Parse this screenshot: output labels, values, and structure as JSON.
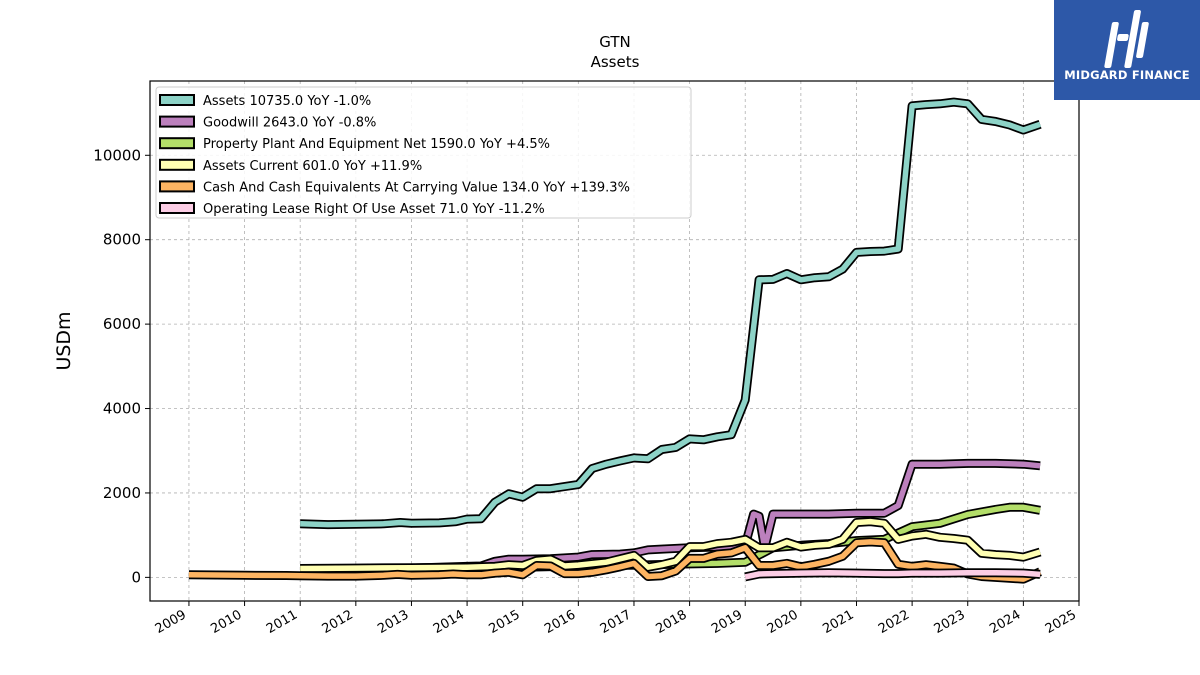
{
  "chart_data": {
    "type": "line",
    "title": "GTN",
    "subtitle": "Assets",
    "xlabel": "",
    "ylabel": "USDm",
    "xlim": [
      2008.3,
      2025.0
    ],
    "ylim": [
      -560,
      11760
    ],
    "xticks": [
      "2009",
      "2010",
      "2011",
      "2012",
      "2013",
      "2014",
      "2015",
      "2016",
      "2017",
      "2018",
      "2019",
      "2020",
      "2021",
      "2022",
      "2023",
      "2024",
      "2025"
    ],
    "yticks": [
      "0",
      "2000",
      "4000",
      "6000",
      "8000",
      "10000"
    ],
    "grid": true,
    "legend_position": "top-left",
    "series": [
      {
        "name": "Assets  10735.0 YoY -1.0%",
        "color": "#8dd3c7",
        "points": [
          [
            2011.0,
            1270
          ],
          [
            2011.5,
            1250
          ],
          [
            2012.0,
            1260
          ],
          [
            2012.5,
            1270
          ],
          [
            2012.8,
            1300
          ],
          [
            2013.0,
            1280
          ],
          [
            2013.5,
            1290
          ],
          [
            2013.8,
            1320
          ],
          [
            2014.0,
            1380
          ],
          [
            2014.25,
            1390
          ],
          [
            2014.5,
            1780
          ],
          [
            2014.75,
            1980
          ],
          [
            2015.0,
            1900
          ],
          [
            2015.25,
            2100
          ],
          [
            2015.5,
            2100
          ],
          [
            2015.75,
            2150
          ],
          [
            2016.0,
            2200
          ],
          [
            2016.25,
            2580
          ],
          [
            2016.5,
            2680
          ],
          [
            2016.75,
            2760
          ],
          [
            2017.0,
            2830
          ],
          [
            2017.25,
            2810
          ],
          [
            2017.5,
            3030
          ],
          [
            2017.75,
            3080
          ],
          [
            2018.0,
            3280
          ],
          [
            2018.25,
            3260
          ],
          [
            2018.5,
            3330
          ],
          [
            2018.75,
            3380
          ],
          [
            2019.0,
            4200
          ],
          [
            2019.25,
            7050
          ],
          [
            2019.5,
            7060
          ],
          [
            2019.75,
            7200
          ],
          [
            2020.0,
            7050
          ],
          [
            2020.25,
            7100
          ],
          [
            2020.5,
            7120
          ],
          [
            2020.75,
            7300
          ],
          [
            2021.0,
            7700
          ],
          [
            2021.25,
            7720
          ],
          [
            2021.5,
            7730
          ],
          [
            2021.75,
            7780
          ],
          [
            2022.0,
            11170
          ],
          [
            2022.25,
            11200
          ],
          [
            2022.5,
            11220
          ],
          [
            2022.75,
            11260
          ],
          [
            2023.0,
            11220
          ],
          [
            2023.25,
            10850
          ],
          [
            2023.5,
            10800
          ],
          [
            2023.75,
            10720
          ],
          [
            2024.0,
            10600
          ],
          [
            2024.3,
            10735
          ]
        ]
      },
      {
        "name": "Goodwill  2643.0 YoY -0.8%",
        "color": "#bc80bd",
        "points": [
          [
            2011.0,
            200
          ],
          [
            2012.0,
            210
          ],
          [
            2013.0,
            220
          ],
          [
            2014.0,
            260
          ],
          [
            2014.25,
            270
          ],
          [
            2014.5,
            380
          ],
          [
            2014.75,
            430
          ],
          [
            2015.0,
            430
          ],
          [
            2015.5,
            440
          ],
          [
            2016.0,
            480
          ],
          [
            2016.25,
            540
          ],
          [
            2016.75,
            550
          ],
          [
            2017.0,
            580
          ],
          [
            2017.25,
            650
          ],
          [
            2017.5,
            670
          ],
          [
            2018.0,
            700
          ],
          [
            2018.5,
            720
          ],
          [
            2019.0,
            760
          ],
          [
            2019.15,
            1500
          ],
          [
            2019.25,
            1450
          ],
          [
            2019.35,
            700
          ],
          [
            2019.5,
            1500
          ],
          [
            2020.0,
            1500
          ],
          [
            2020.5,
            1500
          ],
          [
            2021.0,
            1520
          ],
          [
            2021.5,
            1520
          ],
          [
            2021.75,
            1700
          ],
          [
            2022.0,
            2680
          ],
          [
            2022.5,
            2680
          ],
          [
            2023.0,
            2700
          ],
          [
            2023.5,
            2700
          ],
          [
            2024.0,
            2680
          ],
          [
            2024.3,
            2643
          ]
        ]
      },
      {
        "name": "Property Plant And Equipment Net  1590.0 YoY +4.5%",
        "color": "#b3de69",
        "points": [
          [
            2011.0,
            160
          ],
          [
            2012.0,
            170
          ],
          [
            2013.0,
            190
          ],
          [
            2014.0,
            210
          ],
          [
            2015.0,
            240
          ],
          [
            2016.0,
            270
          ],
          [
            2017.0,
            290
          ],
          [
            2018.0,
            320
          ],
          [
            2018.5,
            330
          ],
          [
            2019.0,
            360
          ],
          [
            2019.5,
            700
          ],
          [
            2020.0,
            760
          ],
          [
            2020.5,
            800
          ],
          [
            2021.0,
            870
          ],
          [
            2021.5,
            900
          ],
          [
            2022.0,
            1200
          ],
          [
            2022.5,
            1280
          ],
          [
            2023.0,
            1490
          ],
          [
            2023.5,
            1610
          ],
          [
            2023.75,
            1660
          ],
          [
            2024.0,
            1660
          ],
          [
            2024.3,
            1590
          ]
        ]
      },
      {
        "name": "Assets Current  601.0 YoY +11.9%",
        "color": "#ffffb3",
        "points": [
          [
            2011.0,
            210
          ],
          [
            2012.0,
            220
          ],
          [
            2013.0,
            230
          ],
          [
            2014.0,
            240
          ],
          [
            2014.5,
            260
          ],
          [
            2014.75,
            300
          ],
          [
            2015.0,
            280
          ],
          [
            2015.25,
            400
          ],
          [
            2015.5,
            430
          ],
          [
            2015.75,
            270
          ],
          [
            2016.0,
            290
          ],
          [
            2016.5,
            360
          ],
          [
            2017.0,
            520
          ],
          [
            2017.25,
            240
          ],
          [
            2017.5,
            300
          ],
          [
            2017.75,
            380
          ],
          [
            2018.0,
            730
          ],
          [
            2018.25,
            730
          ],
          [
            2018.5,
            800
          ],
          [
            2018.75,
            830
          ],
          [
            2019.0,
            900
          ],
          [
            2019.25,
            700
          ],
          [
            2019.5,
            700
          ],
          [
            2019.75,
            830
          ],
          [
            2020.0,
            720
          ],
          [
            2020.25,
            760
          ],
          [
            2020.5,
            780
          ],
          [
            2020.75,
            900
          ],
          [
            2021.0,
            1300
          ],
          [
            2021.25,
            1320
          ],
          [
            2021.5,
            1280
          ],
          [
            2021.75,
            900
          ],
          [
            2022.0,
            980
          ],
          [
            2022.25,
            1020
          ],
          [
            2022.5,
            950
          ],
          [
            2022.75,
            920
          ],
          [
            2023.0,
            880
          ],
          [
            2023.25,
            570
          ],
          [
            2023.5,
            540
          ],
          [
            2023.75,
            520
          ],
          [
            2024.0,
            480
          ],
          [
            2024.3,
            601
          ]
        ]
      },
      {
        "name": "Cash And Cash Equivalents At Carrying Value  134.0 YoY +139.3%",
        "color": "#fdb462",
        "points": [
          [
            2009.0,
            60
          ],
          [
            2010.0,
            50
          ],
          [
            2010.75,
            45
          ],
          [
            2011.0,
            40
          ],
          [
            2011.5,
            30
          ],
          [
            2012.0,
            30
          ],
          [
            2012.5,
            50
          ],
          [
            2012.75,
            70
          ],
          [
            2013.0,
            50
          ],
          [
            2013.5,
            60
          ],
          [
            2013.75,
            80
          ],
          [
            2014.0,
            60
          ],
          [
            2014.25,
            60
          ],
          [
            2014.5,
            100
          ],
          [
            2014.75,
            120
          ],
          [
            2015.0,
            60
          ],
          [
            2015.25,
            280
          ],
          [
            2015.5,
            270
          ],
          [
            2015.75,
            90
          ],
          [
            2016.0,
            90
          ],
          [
            2016.25,
            120
          ],
          [
            2016.5,
            180
          ],
          [
            2016.75,
            250
          ],
          [
            2017.0,
            330
          ],
          [
            2017.25,
            20
          ],
          [
            2017.5,
            40
          ],
          [
            2017.75,
            150
          ],
          [
            2018.0,
            450
          ],
          [
            2018.25,
            450
          ],
          [
            2018.5,
            550
          ],
          [
            2018.75,
            580
          ],
          [
            2019.0,
            700
          ],
          [
            2019.25,
            280
          ],
          [
            2019.5,
            280
          ],
          [
            2019.75,
            330
          ],
          [
            2020.0,
            250
          ],
          [
            2020.25,
            310
          ],
          [
            2020.5,
            380
          ],
          [
            2020.75,
            500
          ],
          [
            2021.0,
            820
          ],
          [
            2021.25,
            840
          ],
          [
            2021.5,
            820
          ],
          [
            2021.75,
            310
          ],
          [
            2022.0,
            260
          ],
          [
            2022.25,
            300
          ],
          [
            2022.5,
            260
          ],
          [
            2022.75,
            220
          ],
          [
            2023.0,
            80
          ],
          [
            2023.25,
            20
          ],
          [
            2023.5,
            0
          ],
          [
            2023.75,
            -20
          ],
          [
            2024.0,
            -40
          ],
          [
            2024.3,
            134
          ]
        ]
      },
      {
        "name": "Operating Lease Right Of Use Asset  71.0 YoY -11.2%",
        "color": "#fccde5",
        "points": [
          [
            2019.0,
            10
          ],
          [
            2019.25,
            80
          ],
          [
            2019.5,
            90
          ],
          [
            2020.0,
            100
          ],
          [
            2020.5,
            110
          ],
          [
            2021.0,
            100
          ],
          [
            2021.5,
            90
          ],
          [
            2021.75,
            90
          ],
          [
            2022.0,
            100
          ],
          [
            2022.5,
            100
          ],
          [
            2023.0,
            110
          ],
          [
            2023.5,
            110
          ],
          [
            2024.0,
            100
          ],
          [
            2024.3,
            71
          ]
        ]
      }
    ]
  },
  "logo": {
    "text": "MIDGARD FINANCE",
    "background": "#2d58a8"
  }
}
